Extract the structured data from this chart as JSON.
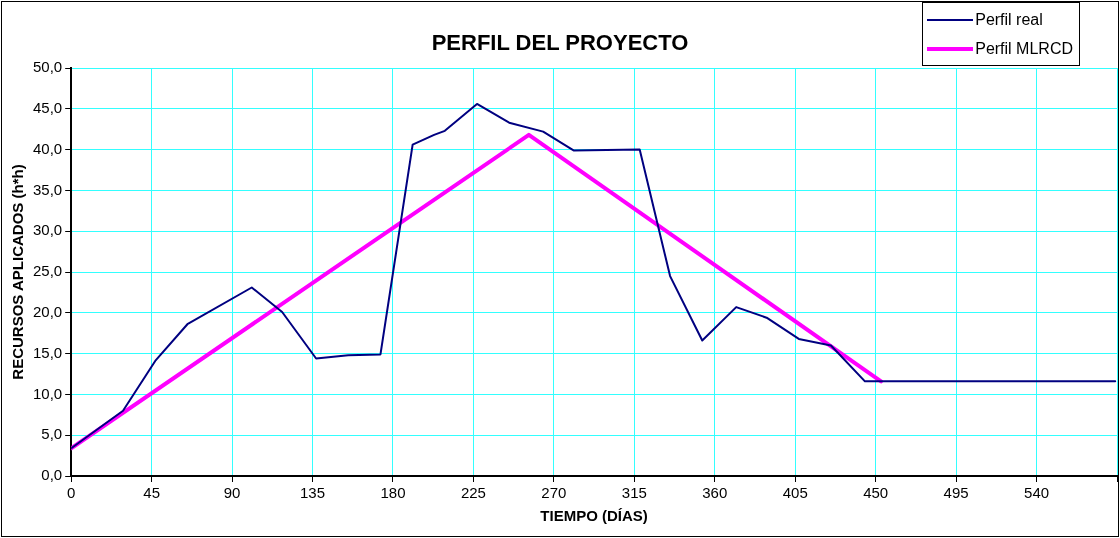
{
  "chart_data": {
    "type": "line",
    "title": "PERFIL DEL PROYECTO",
    "xlabel": "TIEMPO (DÍAS)",
    "ylabel": "RECURSOS APLICADOS (h*h)",
    "series": [
      {
        "name": "Perfil real",
        "color": "#000080",
        "x": [
          0,
          29,
          47,
          65,
          101,
          118,
          137,
          155,
          173,
          191,
          203,
          209,
          227,
          245,
          264,
          281,
          318,
          335,
          353,
          372,
          389,
          407,
          425,
          444,
          584
        ],
        "values": [
          3.4,
          8.0,
          14.1,
          18.6,
          23.1,
          20.1,
          14.4,
          14.8,
          14.9,
          40.6,
          41.8,
          42.3,
          45.6,
          43.3,
          42.2,
          39.9,
          40.0,
          24.5,
          16.6,
          20.7,
          19.4,
          16.8,
          16.0,
          11.6,
          11.6
        ]
      },
      {
        "name": "Perfil MLRCD",
        "color": "#ff00ff",
        "x": [
          0,
          256,
          453
        ],
        "values": [
          3.4,
          41.8,
          11.6
        ]
      }
    ],
    "xlim": [
      0,
      585
    ],
    "xticks": [
      0,
      45,
      90,
      135,
      180,
      225,
      270,
      315,
      360,
      405,
      450,
      495,
      540,
      {
        "value": 585,
        "label": null
      }
    ],
    "ylim": [
      0,
      50
    ],
    "yticks": [
      {
        "value": 0,
        "label": "0,0"
      },
      {
        "value": 5,
        "label": "5,0"
      },
      {
        "value": 10,
        "label": "10,0"
      },
      {
        "value": 15,
        "label": "15,0"
      },
      {
        "value": 20,
        "label": "20,0"
      },
      {
        "value": 25,
        "label": "25,0"
      },
      {
        "value": 30,
        "label": "30,0"
      },
      {
        "value": 35,
        "label": "35,0"
      },
      {
        "value": 40,
        "label": "40,0"
      },
      {
        "value": 45,
        "label": "45,0"
      },
      {
        "value": 50,
        "label": "50,0"
      }
    ],
    "grid": true,
    "legend": "top right",
    "marker": "none",
    "line_style": "solid"
  }
}
